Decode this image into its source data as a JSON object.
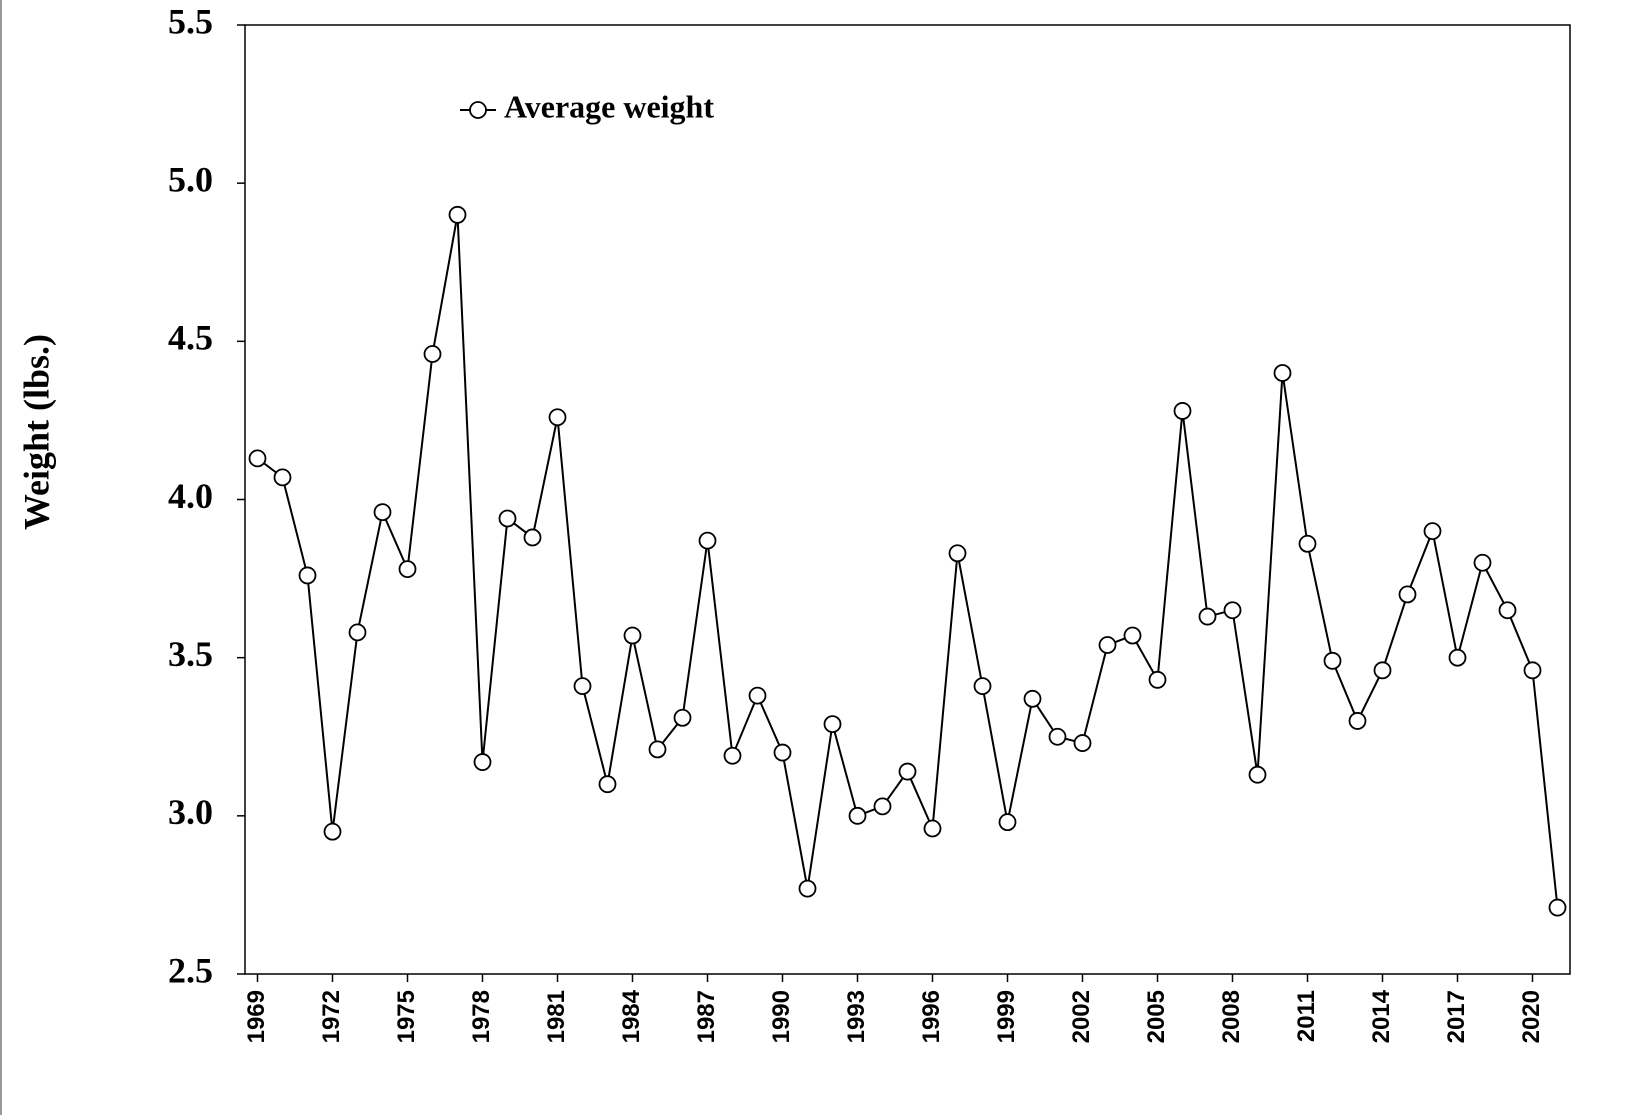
{
  "chart_data": {
    "type": "line",
    "ylabel": "Weight (lbs.)",
    "x": [
      1969,
      1970,
      1971,
      1972,
      1973,
      1974,
      1975,
      1976,
      1977,
      1978,
      1979,
      1980,
      1981,
      1982,
      1983,
      1984,
      1985,
      1986,
      1987,
      1988,
      1989,
      1990,
      1991,
      1992,
      1993,
      1994,
      1995,
      1996,
      1997,
      1998,
      1999,
      2000,
      2001,
      2002,
      2003,
      2004,
      2005,
      2006,
      2007,
      2008,
      2009,
      2010,
      2011,
      2012,
      2013,
      2014,
      2015,
      2016,
      2017,
      2018,
      2019,
      2020,
      2021
    ],
    "series": [
      {
        "name": "Average weight",
        "color": "#000000",
        "values": [
          4.13,
          4.07,
          3.76,
          2.95,
          3.58,
          3.96,
          3.78,
          4.46,
          4.9,
          3.17,
          3.94,
          3.88,
          4.26,
          3.41,
          3.1,
          3.57,
          3.21,
          3.31,
          3.87,
          3.19,
          3.38,
          3.2,
          2.77,
          3.29,
          3.0,
          3.03,
          3.14,
          2.96,
          3.83,
          3.41,
          2.98,
          3.37,
          3.25,
          3.23,
          3.54,
          3.57,
          3.43,
          4.28,
          3.63,
          3.65,
          3.13,
          4.4,
          3.86,
          3.49,
          3.3,
          3.46,
          3.7,
          3.9,
          3.5,
          3.8,
          3.65,
          3.46,
          2.71
        ]
      }
    ],
    "xlim": [
      1968.5,
      2021.5
    ],
    "xticks": [
      1969,
      1972,
      1975,
      1978,
      1981,
      1984,
      1987,
      1990,
      1993,
      1996,
      1999,
      2002,
      2005,
      2008,
      2011,
      2014,
      2017,
      2020
    ],
    "ylim": [
      2.5,
      5.5
    ],
    "yticks": [
      2.5,
      {
        "value": 3,
        "label": "3.0"
      },
      3.5,
      {
        "value": 4,
        "label": "4.0"
      },
      4.5,
      {
        "value": 5,
        "label": "5.0"
      },
      5.5
    ],
    "legend": "upper left",
    "grid": false
  }
}
